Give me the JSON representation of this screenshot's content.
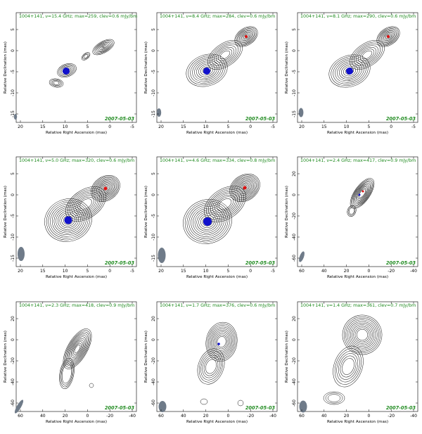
{
  "panels": [
    {
      "header": "1004+141, ν=15.4 GHz; max=259, clev=0.6 mJy/bm",
      "date": "2007-05-03",
      "xlabel": "Relative Right Ascension (mas)",
      "ylabel": "Relative Declination (mas)",
      "xticks": [
        "20",
        "15",
        "10",
        "5",
        "0",
        "-5"
      ],
      "yticks": [
        "5",
        "0",
        "-5",
        "-10",
        "-15"
      ]
    },
    {
      "header": "1004+141, ν=8.4 GHz; max=284, clev=0.6 mJy/bm",
      "date": "2007-05-03",
      "xlabel": "Relative Right Ascension (mas)",
      "ylabel": "Relative Declination (mas)",
      "xticks": [
        "20",
        "15",
        "10",
        "5",
        "0",
        "-5"
      ],
      "yticks": [
        "5",
        "0",
        "-5",
        "-10",
        "-15"
      ]
    },
    {
      "header": "1004+141, ν=8.1 GHz; max=290, clev=0.6 mJy/bm",
      "date": "2007-05-03",
      "xlabel": "Relative Right Ascension (mas)",
      "ylabel": "Relative Declination (mas)",
      "xticks": [
        "20",
        "15",
        "10",
        "5",
        "0",
        "-5"
      ],
      "yticks": [
        "5",
        "0",
        "-5",
        "-10",
        "-15"
      ]
    },
    {
      "header": "1004+141, ν=5.0 GHz; max=320, clev=0.6 mJy/bm",
      "date": "2007-05-03",
      "xlabel": "Relative Right Ascension (mas)",
      "ylabel": "Relative Declination (mas)",
      "xticks": [
        "20",
        "15",
        "10",
        "5",
        "0",
        "-5"
      ],
      "yticks": [
        "5",
        "0",
        "-5",
        "-10",
        "-15"
      ]
    },
    {
      "header": "1004+141, ν=4.6 GHz; max=334, clev=0.8 mJy/bm",
      "date": "2007-05-03",
      "xlabel": "Relative Right Ascension (mas)",
      "ylabel": "Relative Declination (mas)",
      "xticks": [
        "20",
        "15",
        "10",
        "5",
        "0",
        "-5"
      ],
      "yticks": [
        "5",
        "0",
        "-5",
        "-10",
        "-15"
      ]
    },
    {
      "header": "1004+141, ν=2.4 GHz; max=417, clev=0.9 mJy/bm",
      "date": "2007-05-03",
      "xlabel": "Relative Right Ascension (mas)",
      "ylabel": "Relative Declination (mas)",
      "xticks": [
        "60",
        "40",
        "20",
        "0",
        "-20",
        "-40"
      ],
      "yticks": [
        "20",
        "0",
        "-20",
        "-40",
        "-60"
      ]
    },
    {
      "header": "1004+141, ν=2.3 GHz; max=418, clev=0.9 mJy/bm",
      "date": "2007-05-03",
      "xlabel": "Relative Right Ascension (mas)",
      "ylabel": "Relative Declination (mas)",
      "xticks": [
        "60",
        "40",
        "20",
        "0",
        "-20",
        "-40"
      ],
      "yticks": [
        "20",
        "0",
        "-20",
        "-40",
        "-60"
      ]
    },
    {
      "header": "1004+141, ν=1.7 GHz; max=376, clev=0.6 mJy/bm",
      "date": "2007-05-03",
      "xlabel": "Relative Right Ascension (mas)",
      "ylabel": "Relative Declination (mas)",
      "xticks": [
        "60",
        "40",
        "20",
        "0",
        "-20",
        "-40"
      ],
      "yticks": [
        "20",
        "0",
        "-20",
        "-40",
        "-60"
      ]
    },
    {
      "header": "1004+141, ν=1.4 GHz; max=361, clev=0.7 mJy/bm",
      "date": "2007-05-03",
      "xlabel": "Relative Right Ascension (mas)",
      "ylabel": "Relative Declination (mas)",
      "xticks": [
        "60",
        "40",
        "20",
        "0",
        "-20",
        "-40"
      ],
      "yticks": [
        "20",
        "0",
        "-20",
        "-40",
        "-60"
      ]
    }
  ],
  "colors": {
    "header": "#1e8a1e",
    "core_marker": "#1010cc",
    "peak_marker": "#dd1111",
    "beam": "#6f7b89",
    "contour": "#111111"
  }
}
